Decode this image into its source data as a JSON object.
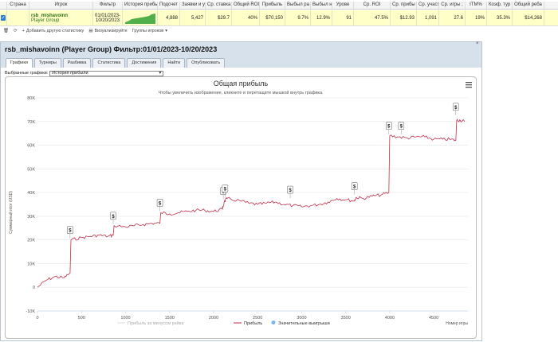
{
  "grid": {
    "headers": [
      "",
      "Страна",
      "Игрок",
      "Фильтр",
      "История прибыли",
      "Подсчет",
      "Заявки и у",
      "Ср. ставка",
      "Общий ROI",
      "Прибыль",
      "Выбыл ра",
      "Выбыл н",
      "Урове",
      "Ср. ROI",
      "Ср. прибы",
      "Ср. участ",
      "Ср. игры ;",
      "ITM%",
      "Коэф. тур",
      "Общий реба"
    ],
    "row": {
      "player_name": "rsb_mishavoinn",
      "player_group": "Player Group",
      "filter_line1": "01/01/2023-",
      "filter_line2": "10/20/2023",
      "count": "4,888",
      "entries": "5,427",
      "avg_stake": "$29.7",
      "total_roi": "40%",
      "profit": "$70,150",
      "knocked_early": "9.7%",
      "knocked_late": "12.9%",
      "level": "91",
      "avg_roi": "47.5%",
      "avg_profit": "$12.93",
      "avg_field": "1,091",
      "avg_games": "27.6",
      "itm": "19%",
      "tour_coef": "35.3%",
      "total_rebuy": "$14,268"
    }
  },
  "toolbar": {
    "add_stat": "Добавить другую статистику",
    "visualize": "Визуализируйте",
    "player_groups": "Группы игроков"
  },
  "window": {
    "title": "rsb_mishavoinn (Player Group) Фильтр:01/01/2023-10/20/2023",
    "tabs": [
      "Графики",
      "Турниры",
      "Разбивка",
      "Статистика",
      "Достижения",
      "Найти",
      "Опубликовать"
    ],
    "selected_label": "Выбранные графики:",
    "selected_value": "История прибыли"
  },
  "chart_data": {
    "type": "line",
    "title": "Общая прибыль",
    "subtitle": "Чтобы увеличить изображение, кликните и перетащите мышкой внутрь графика.",
    "xlabel": "Номер игры",
    "ylabel": "Суммарный итог (USD)",
    "xlim": [
      0,
      4888
    ],
    "ylim": [
      -10000,
      80000
    ],
    "x_ticks": [
      "0",
      "500",
      "1000",
      "1500",
      "2000",
      "2500",
      "3000",
      "3500",
      "4000",
      "4500"
    ],
    "y_ticks": [
      "-10K",
      "0",
      "10K",
      "20K",
      "30K",
      "40K",
      "50K",
      "60K",
      "70K",
      "80K"
    ],
    "series": [
      {
        "name": "Прибыль за минусом рейка",
        "color": "#dddddd",
        "values": []
      },
      {
        "name": "Прибыль",
        "color": "#c0304a",
        "x": [
          0,
          100,
          200,
          300,
          370,
          380,
          500,
          600,
          700,
          800,
          860,
          870,
          1000,
          1100,
          1200,
          1300,
          1390,
          1400,
          1500,
          1600,
          1700,
          1800,
          1900,
          2000,
          2100,
          2120,
          2150,
          2300,
          2400,
          2500,
          2600,
          2700,
          2800,
          2900,
          3000,
          3100,
          3200,
          3300,
          3400,
          3500,
          3600,
          3620,
          3700,
          3800,
          3900,
          3990,
          4000,
          4100,
          4200,
          4300,
          4400,
          4500,
          4600,
          4700,
          4750,
          4760,
          4800,
          4850
        ],
        "y": [
          0,
          3000,
          4500,
          4000,
          6000,
          20000,
          21000,
          21500,
          22000,
          21500,
          22000,
          26000,
          25500,
          26000,
          26500,
          27000,
          27000,
          31500,
          31000,
          31500,
          32000,
          32500,
          32500,
          32000,
          33000,
          36000,
          37500,
          36500,
          35500,
          35000,
          35500,
          36000,
          35000,
          34500,
          34000,
          34500,
          35000,
          36000,
          37500,
          37000,
          36500,
          38000,
          37500,
          38500,
          39000,
          40000,
          64000,
          63500,
          63000,
          63500,
          63500,
          62500,
          62500,
          62500,
          62000,
          70500,
          70500,
          70000
        ]
      }
    ],
    "big_wins": [
      {
        "x": 370,
        "y": 20000
      },
      {
        "x": 860,
        "y": 26000
      },
      {
        "x": 1390,
        "y": 31500
      },
      {
        "x": 2110,
        "y": 36500
      },
      {
        "x": 2130,
        "y": 37500
      },
      {
        "x": 2870,
        "y": 37000
      },
      {
        "x": 3600,
        "y": 38500
      },
      {
        "x": 3990,
        "y": 64000
      },
      {
        "x": 4130,
        "y": 64000
      },
      {
        "x": 4750,
        "y": 72000
      }
    ],
    "legend": [
      "Прибыль за минусом рейка",
      "Прибыль",
      "Значительные выигрыши"
    ],
    "big_win_label": "$"
  }
}
